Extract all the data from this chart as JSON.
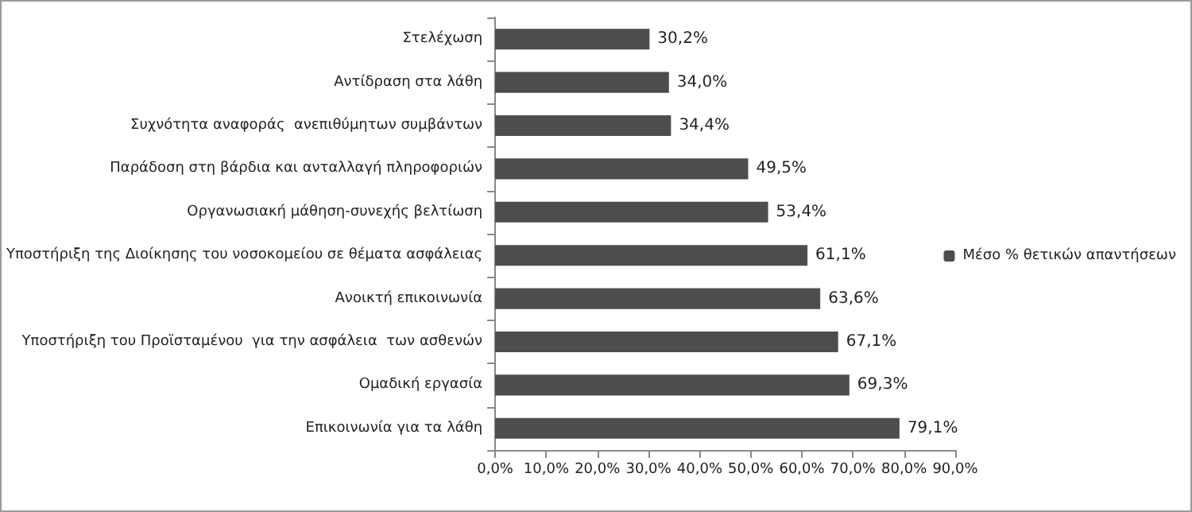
{
  "chart_data": {
    "type": "bar",
    "orientation": "horizontal",
    "categories": [
      "Στελέχωση",
      "Αντίδραση στα λάθη",
      "Συχνότητα αναφοράς  ανεπιθύμητων συμβάντων",
      "Παράδοση στη βάρδια και ανταλλαγή πληροφοριών",
      "Οργανωσιακή μάθηση-συνεχής βελτίωση",
      "Υποστήριξη της Διοίκησης του νοσοκομείου σε θέματα ασφάλειας",
      "Ανοικτή επικοινωνία",
      "Υποστήριξη του Προϊσταμένου  για την ασφάλεια  των ασθενών",
      "Ομαδική εργασία",
      "Επικοινωνία για τα λάθη"
    ],
    "series": [
      {
        "name": "Μέσο % θετικών απαντήσεων",
        "color": "#4d4d4d",
        "values": [
          30.2,
          34.0,
          34.4,
          49.5,
          53.4,
          61.1,
          63.6,
          67.1,
          69.3,
          79.1
        ],
        "value_labels": [
          "30,2%",
          "34,0%",
          "34,4%",
          "49,5%",
          "53,4%",
          "61,1%",
          "63,6%",
          "67,1%",
          "69,3%",
          "79,1%"
        ]
      }
    ],
    "xlim": [
      0,
      90
    ],
    "xticks": [
      {
        "value": 0,
        "label": "0,0%"
      },
      {
        "value": 10,
        "label": "10,0%"
      },
      {
        "value": 20,
        "label": "20,0%"
      },
      {
        "value": 30,
        "label": "30,0%"
      },
      {
        "value": 40,
        "label": "40,0%"
      },
      {
        "value": 50,
        "label": "50,0%"
      },
      {
        "value": 60,
        "label": "60,0%"
      },
      {
        "value": 70,
        "label": "70,0%"
      },
      {
        "value": 80,
        "label": "80,0%"
      },
      {
        "value": 90,
        "label": "90,0%"
      }
    ],
    "grid": false,
    "legend": "right"
  }
}
